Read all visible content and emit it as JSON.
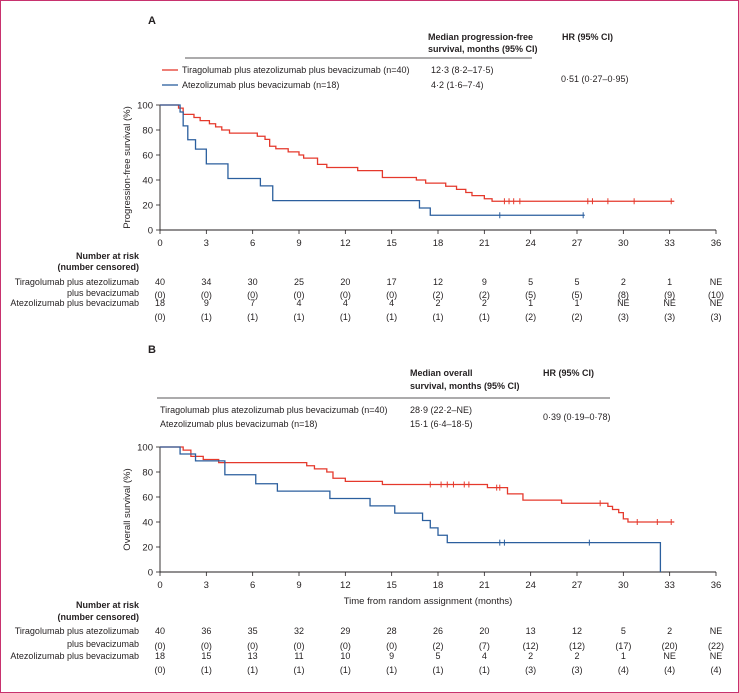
{
  "chart_data": [
    {
      "type": "line",
      "chart_kind": "kaplan-meier",
      "panel_label": "A",
      "ylabel": "Progression-free survival (%)",
      "xlabel": "",
      "xlim": [
        0,
        36
      ],
      "ylim": [
        0,
        100
      ],
      "x_ticks": [
        "0",
        "3",
        "6",
        "9",
        "12",
        "15",
        "18",
        "21",
        "24",
        "27",
        "30",
        "33",
        "36"
      ],
      "y_ticks": [
        "0",
        "20",
        "40",
        "60",
        "80",
        "100"
      ],
      "grid": false,
      "table_headers": [
        "Median progression-free survival, months (95% CI)",
        "HR (95% CI)"
      ],
      "hr": "0·51 (0·27–0·95)",
      "series": [
        {
          "name": "Tiragolumab plus atezolizumab plus bevacizumab (n=40)",
          "median": "12·3 (8·2–17·5)",
          "color": "#e5392c",
          "steps": [
            [
              0,
              100
            ],
            [
              1.2,
              97.5
            ],
            [
              1.5,
              92.5
            ],
            [
              2.2,
              90
            ],
            [
              2.6,
              87.5
            ],
            [
              3.2,
              85
            ],
            [
              3.6,
              82.5
            ],
            [
              4,
              80
            ],
            [
              4.5,
              77.5
            ],
            [
              6.3,
              75
            ],
            [
              6.8,
              72.5
            ],
            [
              7.1,
              67
            ],
            [
              7.5,
              65
            ],
            [
              8.3,
              62.5
            ],
            [
              9,
              60
            ],
            [
              9.3,
              57.5
            ],
            [
              10.2,
              52.5
            ],
            [
              10.8,
              50
            ],
            [
              12.8,
              47.5
            ],
            [
              14.4,
              42
            ],
            [
              16.6,
              40
            ],
            [
              17.2,
              37.5
            ],
            [
              18.5,
              35
            ],
            [
              19.2,
              32.5
            ],
            [
              19.8,
              30
            ],
            [
              20.2,
              27.5
            ],
            [
              21,
              25
            ],
            [
              21.5,
              23
            ],
            [
              33.3,
              23
            ]
          ],
          "censor_x": [
            22.3,
            22.6,
            22.9,
            23.3,
            27.7,
            28,
            29,
            30.7,
            33.1
          ]
        },
        {
          "name": "Atezolizumab plus bevacizumab (n=18)",
          "median": "4·2 (1·6–7·4)",
          "color": "#2b5f9e",
          "steps": [
            [
              0,
              100
            ],
            [
              1.3,
              94.4
            ],
            [
              1.5,
              83.3
            ],
            [
              1.8,
              72.2
            ],
            [
              2.3,
              64.7
            ],
            [
              3,
              52.9
            ],
            [
              4.4,
              41.2
            ],
            [
              6.5,
              35.3
            ],
            [
              7.3,
              23.5
            ],
            [
              16.8,
              17.6
            ],
            [
              17.5,
              11.8
            ],
            [
              27.5,
              11.8
            ]
          ],
          "censor_x": [
            22,
            27.4
          ]
        }
      ],
      "risk_table": {
        "heading": [
          "Number at risk",
          "(number censored)"
        ],
        "rows": [
          {
            "group_label": [
              "Tiragolumab plus atezolizumab",
              "plus bevacizumab"
            ],
            "at_risk": [
              "40",
              "34",
              "30",
              "25",
              "20",
              "17",
              "12",
              "9",
              "5",
              "5",
              "2",
              "1",
              "NE"
            ],
            "censored": [
              "(0)",
              "(0)",
              "(0)",
              "(0)",
              "(0)",
              "(0)",
              "(2)",
              "(2)",
              "(5)",
              "(5)",
              "(8)",
              "(9)",
              "(10)"
            ]
          },
          {
            "group_label": [
              "Atezolizumab plus bevacizumab"
            ],
            "at_risk": [
              "18",
              "9",
              "7",
              "4",
              "4",
              "4",
              "2",
              "2",
              "1",
              "1",
              "NE",
              "NE",
              "NE"
            ],
            "censored": [
              "(0)",
              "(1)",
              "(1)",
              "(1)",
              "(1)",
              "(1)",
              "(1)",
              "(1)",
              "(2)",
              "(2)",
              "(3)",
              "(3)",
              "(3)"
            ]
          }
        ]
      }
    },
    {
      "type": "line",
      "chart_kind": "kaplan-meier",
      "panel_label": "B",
      "ylabel": "Overall survival (%)",
      "xlabel": "Time from random assignment (months)",
      "xlim": [
        0,
        36
      ],
      "ylim": [
        0,
        100
      ],
      "x_ticks": [
        "0",
        "3",
        "6",
        "9",
        "12",
        "15",
        "18",
        "21",
        "24",
        "27",
        "30",
        "33",
        "36"
      ],
      "y_ticks": [
        "0",
        "20",
        "40",
        "60",
        "80",
        "100"
      ],
      "grid": false,
      "table_headers": [
        "Median overall survival, months (95% CI)",
        "HR (95% CI)"
      ],
      "hr": "0·39 (0·19–0·78)",
      "series": [
        {
          "name": "Tiragolumab plus atezolizumab plus bevacizumab (n=40)",
          "median": "28·9 (22·2–NE)",
          "color": "#e5392c",
          "steps": [
            [
              0,
              100
            ],
            [
              1.5,
              97.5
            ],
            [
              2,
              92.5
            ],
            [
              2.8,
              90
            ],
            [
              3.8,
              87.5
            ],
            [
              9.5,
              85
            ],
            [
              10,
              82.5
            ],
            [
              10.8,
              80
            ],
            [
              11.2,
              75
            ],
            [
              12,
              72.5
            ],
            [
              14.4,
              70
            ],
            [
              21.2,
              67.5
            ],
            [
              22.5,
              62.5
            ],
            [
              23.5,
              57.5
            ],
            [
              26,
              55
            ],
            [
              29,
              52.5
            ],
            [
              29.3,
              50
            ],
            [
              29.7,
              47.5
            ],
            [
              30,
              42.5
            ],
            [
              30.3,
              40
            ],
            [
              33.3,
              40
            ]
          ],
          "censor_x": [
            17.5,
            18.2,
            18.6,
            19,
            19.7,
            20,
            21.8,
            22,
            28.5,
            30.9,
            32.2,
            33.1
          ]
        },
        {
          "name": "Atezolizumab plus bevacizumab (n=18)",
          "median": "15·1 (6·4–18·5)",
          "color": "#2b5f9e",
          "steps": [
            [
              0,
              100
            ],
            [
              1.3,
              94.4
            ],
            [
              2.3,
              88.9
            ],
            [
              4.2,
              77.8
            ],
            [
              6.2,
              70.6
            ],
            [
              7.6,
              64.7
            ],
            [
              11,
              58.8
            ],
            [
              13.6,
              52.9
            ],
            [
              15.2,
              47.1
            ],
            [
              17,
              41.2
            ],
            [
              17.5,
              35.3
            ],
            [
              18,
              29.4
            ],
            [
              18.6,
              23.5
            ],
            [
              32.4,
              23.5
            ],
            [
              32.4,
              0
            ]
          ],
          "censor_x": [
            22,
            22.3,
            27.8
          ]
        }
      ],
      "risk_table": {
        "heading": [
          "Number at risk",
          "(number censored)"
        ],
        "rows": [
          {
            "group_label": [
              "Tiragolumab plus atezolizumab",
              "plus bevacizumab"
            ],
            "at_risk": [
              "40",
              "36",
              "35",
              "32",
              "29",
              "28",
              "26",
              "20",
              "13",
              "12",
              "5",
              "2",
              "NE"
            ],
            "censored": [
              "(0)",
              "(0)",
              "(0)",
              "(0)",
              "(0)",
              "(0)",
              "(2)",
              "(7)",
              "(12)",
              "(12)",
              "(17)",
              "(20)",
              "(22)"
            ]
          },
          {
            "group_label": [
              "Atezolizumab plus bevacizumab"
            ],
            "at_risk": [
              "18",
              "15",
              "13",
              "11",
              "10",
              "9",
              "5",
              "4",
              "2",
              "2",
              "1",
              "NE",
              "NE"
            ],
            "censored": [
              "(0)",
              "(1)",
              "(1)",
              "(1)",
              "(1)",
              "(1)",
              "(1)",
              "(1)",
              "(3)",
              "(3)",
              "(4)",
              "(4)",
              "(4)"
            ]
          }
        ]
      }
    }
  ]
}
